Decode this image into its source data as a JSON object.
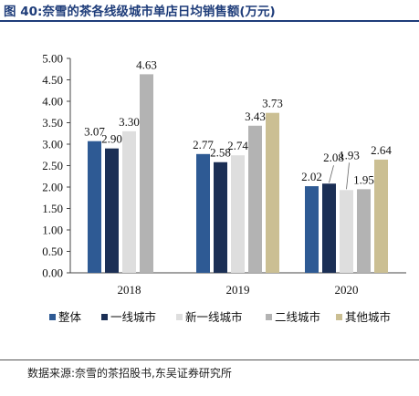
{
  "title": "图 40:奈雪的茶各线级城市单店日均销售额(万元)",
  "source": "数据来源:奈雪的茶招股书,东吴证券研究所",
  "chart_data": {
    "type": "bar",
    "categories": [
      "2018",
      "2019",
      "2020"
    ],
    "series": [
      {
        "name": "整体",
        "color": "#2e5a94",
        "values": [
          3.07,
          2.77,
          2.02
        ]
      },
      {
        "name": "一线城市",
        "color": "#1b2f55",
        "values": [
          2.9,
          2.58,
          2.08
        ]
      },
      {
        "name": "新一线城市",
        "color": "#dedede",
        "values": [
          3.3,
          2.74,
          1.93
        ]
      },
      {
        "name": "二线城市",
        "color": "#b3b3b3",
        "values": [
          4.63,
          3.43,
          1.95
        ]
      },
      {
        "name": "其他城市",
        "color": "#cbbf93",
        "values": [
          null,
          3.73,
          2.64
        ]
      }
    ],
    "value_labels": [
      [
        "3.07",
        "2.77",
        "2.02"
      ],
      [
        "2.90",
        "2.58",
        "2.08"
      ],
      [
        "3.30",
        "2.74",
        "1.93"
      ],
      [
        "4.63",
        "3.43",
        "1.95"
      ],
      [
        "",
        "3.73",
        "2.64"
      ]
    ],
    "yticks": [
      "0.00",
      "0.50",
      "1.00",
      "1.50",
      "2.00",
      "2.50",
      "3.00",
      "3.50",
      "4.00",
      "4.50",
      "5.00"
    ],
    "ylim": [
      0,
      5
    ],
    "grid": false,
    "legend_position": "bottom"
  }
}
